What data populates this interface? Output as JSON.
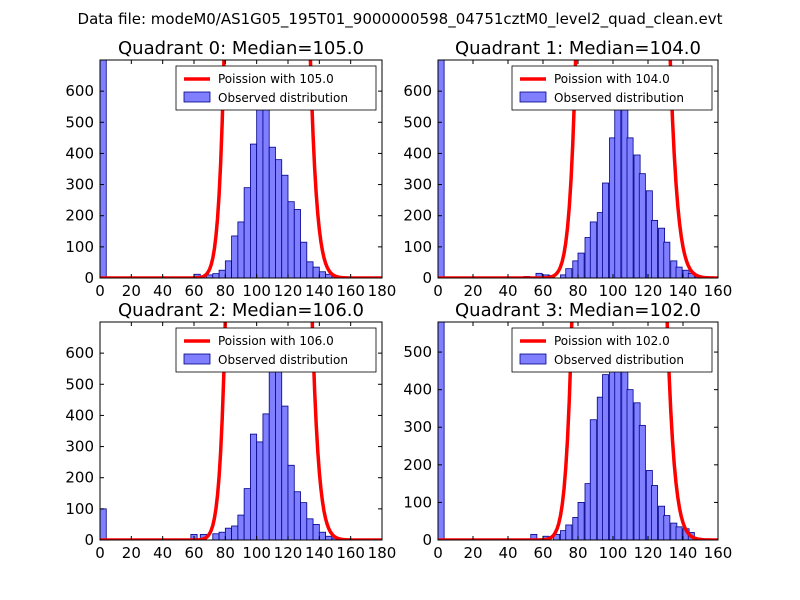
{
  "suptitle": "Data file: modeM0/AS1G05_195T01_9000000598_04751cztM0_level2_quad_clean.evt",
  "colors": {
    "poisson": "#ff0000",
    "bars_fill": "#7f7fff",
    "bars_edge": "#00008b"
  },
  "chart_data": [
    {
      "type": "bar",
      "title": "Quadrant 0: Median=105.0",
      "xlim": [
        0,
        180
      ],
      "ylim": [
        0,
        700
      ],
      "xticks": [
        0,
        20,
        40,
        60,
        80,
        100,
        120,
        140,
        160,
        180
      ],
      "yticks": [
        0,
        100,
        200,
        300,
        400,
        500,
        600
      ],
      "bin_width": 4,
      "bins": [
        [
          0,
          700
        ],
        [
          60,
          12
        ],
        [
          68,
          10
        ],
        [
          72,
          14
        ],
        [
          76,
          25
        ],
        [
          80,
          55
        ],
        [
          84,
          135
        ],
        [
          88,
          180
        ],
        [
          92,
          290
        ],
        [
          96,
          430
        ],
        [
          100,
          565
        ],
        [
          104,
          610
        ],
        [
          108,
          420
        ],
        [
          112,
          380
        ],
        [
          116,
          330
        ],
        [
          120,
          245
        ],
        [
          124,
          220
        ],
        [
          128,
          115
        ],
        [
          132,
          52
        ],
        [
          136,
          35
        ],
        [
          140,
          20
        ],
        [
          144,
          12
        ],
        [
          148,
          5
        ],
        [
          152,
          3
        ],
        [
          160,
          3
        ]
      ],
      "poisson": {
        "label": "Poission with 105.0",
        "mean": 105.0,
        "total": 6450
      },
      "legend": {
        "poisson": "Poission with 105.0",
        "observed": "Observed distribution"
      }
    },
    {
      "type": "bar",
      "title": "Quadrant 1: Median=104.0",
      "xlim": [
        0,
        160
      ],
      "ylim": [
        0,
        700
      ],
      "xticks": [
        0,
        20,
        40,
        60,
        80,
        100,
        120,
        140,
        160
      ],
      "yticks": [
        0,
        100,
        200,
        300,
        400,
        500,
        600
      ],
      "bin_width": 3.5,
      "bins": [
        [
          0,
          700
        ],
        [
          49,
          5
        ],
        [
          56,
          15
        ],
        [
          60,
          10
        ],
        [
          63,
          8
        ],
        [
          70,
          10
        ],
        [
          73,
          30
        ],
        [
          77,
          55
        ],
        [
          80,
          80
        ],
        [
          84,
          130
        ],
        [
          87,
          180
        ],
        [
          91,
          210
        ],
        [
          94,
          305
        ],
        [
          98,
          450
        ],
        [
          101,
          585
        ],
        [
          105,
          620
        ],
        [
          108,
          450
        ],
        [
          112,
          395
        ],
        [
          115,
          335
        ],
        [
          119,
          280
        ],
        [
          122,
          185
        ],
        [
          126,
          160
        ],
        [
          129,
          115
        ],
        [
          133,
          55
        ],
        [
          136,
          35
        ],
        [
          140,
          25
        ],
        [
          143,
          15
        ],
        [
          147,
          5
        ]
      ],
      "poisson": {
        "label": "Poission with 104.0",
        "mean": 104.0,
        "total": 5800
      },
      "legend": {
        "poisson": "Poission with 104.0",
        "observed": "Observed distribution"
      }
    },
    {
      "type": "bar",
      "title": "Quadrant 2: Median=106.0",
      "xlim": [
        0,
        180
      ],
      "ylim": [
        0,
        700
      ],
      "xticks": [
        0,
        20,
        40,
        60,
        80,
        100,
        120,
        140,
        160,
        180
      ],
      "yticks": [
        0,
        100,
        200,
        300,
        400,
        500,
        600
      ],
      "bin_width": 4,
      "bins": [
        [
          0,
          100
        ],
        [
          58,
          18
        ],
        [
          64,
          18
        ],
        [
          72,
          20
        ],
        [
          76,
          25
        ],
        [
          80,
          38
        ],
        [
          84,
          45
        ],
        [
          88,
          80
        ],
        [
          92,
          165
        ],
        [
          96,
          340
        ],
        [
          100,
          315
        ],
        [
          104,
          405
        ],
        [
          108,
          600
        ],
        [
          112,
          615
        ],
        [
          116,
          430
        ],
        [
          120,
          240
        ],
        [
          124,
          155
        ],
        [
          128,
          120
        ],
        [
          132,
          68
        ],
        [
          136,
          50
        ],
        [
          140,
          25
        ],
        [
          144,
          12
        ],
        [
          148,
          6
        ],
        [
          156,
          4
        ]
      ],
      "poisson": {
        "label": "Poission with 106.0",
        "mean": 106.0,
        "total": 6500
      },
      "legend": {
        "poisson": "Poission with 106.0",
        "observed": "Observed distribution"
      }
    },
    {
      "type": "bar",
      "title": "Quadrant 3: Median=102.0",
      "xlim": [
        0,
        160
      ],
      "ylim": [
        0,
        580
      ],
      "xticks": [
        0,
        20,
        40,
        60,
        80,
        100,
        120,
        140,
        160
      ],
      "yticks": [
        0,
        100,
        200,
        300,
        400,
        500
      ],
      "bin_width": 3.5,
      "bins": [
        [
          0,
          700
        ],
        [
          53,
          15
        ],
        [
          60,
          10
        ],
        [
          66,
          15
        ],
        [
          70,
          25
        ],
        [
          73,
          40
        ],
        [
          77,
          60
        ],
        [
          80,
          100
        ],
        [
          84,
          150
        ],
        [
          87,
          320
        ],
        [
          91,
          380
        ],
        [
          94,
          440
        ],
        [
          98,
          520
        ],
        [
          101,
          545
        ],
        [
          105,
          525
        ],
        [
          108,
          400
        ],
        [
          112,
          365
        ],
        [
          115,
          305
        ],
        [
          119,
          185
        ],
        [
          122,
          145
        ],
        [
          126,
          90
        ],
        [
          129,
          65
        ],
        [
          133,
          45
        ],
        [
          136,
          35
        ],
        [
          140,
          30
        ],
        [
          143,
          20
        ],
        [
          147,
          5
        ]
      ],
      "poisson": {
        "label": "Poission with 102.0",
        "mean": 102.0,
        "total": 5500
      },
      "legend": {
        "poisson": "Poission with 102.0",
        "observed": "Observed distribution"
      }
    }
  ]
}
